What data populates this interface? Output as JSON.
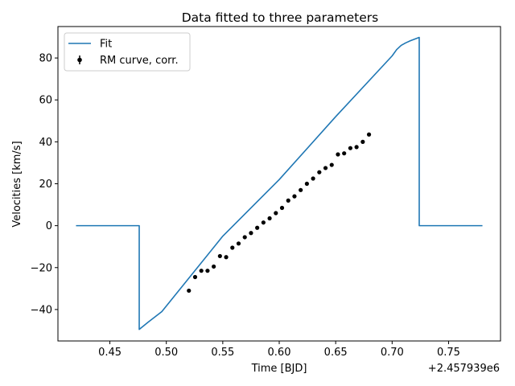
{
  "chart_data": {
    "type": "line",
    "title": "Data fitted to three parameters",
    "xlabel": "Time [BJD]",
    "ylabel": "Velocities [km/s]",
    "x_offset_label": "+2.457939e6",
    "xlim": [
      0.404,
      0.796
    ],
    "ylim": [
      -55,
      95
    ],
    "x_ticks": [
      0.45,
      0.5,
      0.55,
      0.6,
      0.65,
      0.7,
      0.75
    ],
    "x_tick_labels": [
      "0.45",
      "0.50",
      "0.55",
      "0.60",
      "0.65",
      "0.70",
      "0.75"
    ],
    "y_ticks": [
      -40,
      -20,
      0,
      20,
      40,
      60,
      80
    ],
    "y_tick_labels": [
      "−40",
      "−20",
      "0",
      "20",
      "40",
      "60",
      "80"
    ],
    "grid": false,
    "legend_position": "top-left",
    "series": [
      {
        "name": "Fit",
        "kind": "line",
        "color": "#1f77b4",
        "x": [
          0.42,
          0.476,
          0.476,
          0.484,
          0.496,
          0.55,
          0.6,
          0.65,
          0.7,
          0.704,
          0.708,
          0.712,
          0.716,
          0.72,
          0.724,
          0.724,
          0.78
        ],
        "y": [
          0,
          0,
          -49.5,
          -46,
          -41,
          -5,
          22,
          52,
          81,
          84,
          86,
          87.2,
          88.2,
          89,
          89.8,
          0,
          0
        ]
      },
      {
        "name": "RM curve, corr.",
        "kind": "errorbar",
        "color": "#000000",
        "x": [
          0.52,
          0.5255,
          0.531,
          0.5365,
          0.542,
          0.5475,
          0.553,
          0.5585,
          0.564,
          0.5695,
          0.575,
          0.5805,
          0.586,
          0.5915,
          0.597,
          0.6025,
          0.608,
          0.6135,
          0.619,
          0.6245,
          0.63,
          0.6355,
          0.641,
          0.6465,
          0.652,
          0.6575,
          0.663,
          0.6685,
          0.674,
          0.6795
        ],
        "y": [
          -31,
          -24.5,
          -21.5,
          -21.5,
          -19.5,
          -14.5,
          -15,
          -10.5,
          -8.5,
          -5.5,
          -3.5,
          -1,
          1.5,
          3.5,
          6,
          8.5,
          12,
          14,
          17,
          20,
          22.5,
          25.5,
          27.5,
          29,
          34,
          34.5,
          37,
          37.5,
          40,
          43.5
        ]
      }
    ]
  }
}
